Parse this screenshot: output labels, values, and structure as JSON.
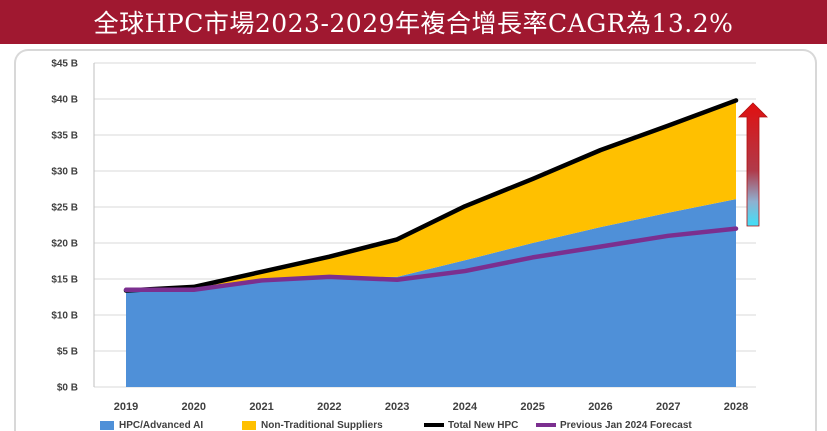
{
  "title": "全球HPC市場2023-2029年複合增長率CAGR為13.2%",
  "chart_data": {
    "type": "area",
    "categories": [
      "2019",
      "2020",
      "2021",
      "2022",
      "2023",
      "2024",
      "2025",
      "2026",
      "2027",
      "2028"
    ],
    "y_tick_labels": [
      "$0 B",
      "$5 B",
      "$10 B",
      "$15 B",
      "$20 B",
      "$25 B",
      "$30 B",
      "$35 B",
      "$40 B",
      "$45 B"
    ],
    "ylim": [
      0,
      45
    ],
    "series": [
      {
        "name": "HPC/Advanced AI",
        "kind": "area",
        "color": "#4f90d8",
        "values": [
          13.4,
          13.5,
          14.7,
          15.2,
          15.3,
          17.6,
          20.0,
          22.2,
          24.2,
          26.1
        ]
      },
      {
        "name": "Non-Traditional Suppliers",
        "kind": "area",
        "color": "#ffc000",
        "values": [
          0.0,
          0.4,
          1.3,
          2.9,
          5.2,
          7.5,
          8.9,
          10.7,
          12.1,
          13.7
        ]
      },
      {
        "name": "Total New HPC",
        "kind": "line",
        "color": "#000000",
        "values": [
          13.4,
          13.9,
          16.0,
          18.1,
          20.5,
          25.1,
          28.9,
          32.9,
          36.3,
          39.8
        ]
      },
      {
        "name": "Previous Jan 2024 Forecast",
        "kind": "line",
        "color": "#7b2f8f",
        "values": [
          13.5,
          13.5,
          14.8,
          15.3,
          14.9,
          16.1,
          18.0,
          19.5,
          21.0,
          22.0
        ]
      }
    ],
    "annotation": "growth-arrow"
  }
}
